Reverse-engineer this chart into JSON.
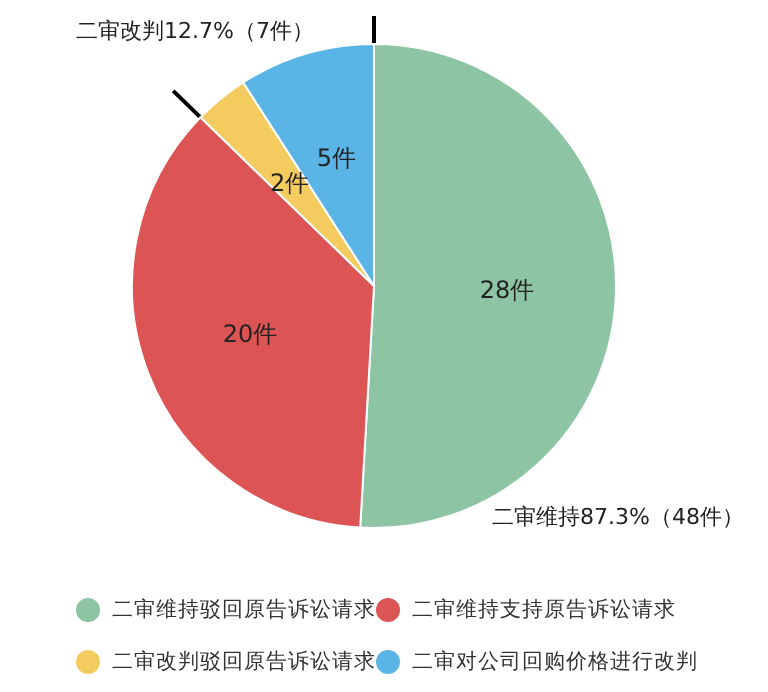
{
  "chart_data": {
    "type": "pie",
    "categories": [
      "二审维持驳回原告诉讼请求",
      "二审维持支持原告诉讼请求",
      "二审改判驳回原告诉讼请求",
      "二审对公司回购价格进行改判"
    ],
    "values": [
      28,
      20,
      2,
      5
    ],
    "colors": [
      "#8dc5a4",
      "#dd5454",
      "#f4cb5e",
      "#5bb4e6"
    ],
    "value_labels": [
      "28件",
      "20件",
      "2件",
      "5件"
    ],
    "annotations": [
      "二审改判12.7%（7件）",
      "二审维持87.3%（48件）"
    ],
    "legend": "bottom"
  }
}
